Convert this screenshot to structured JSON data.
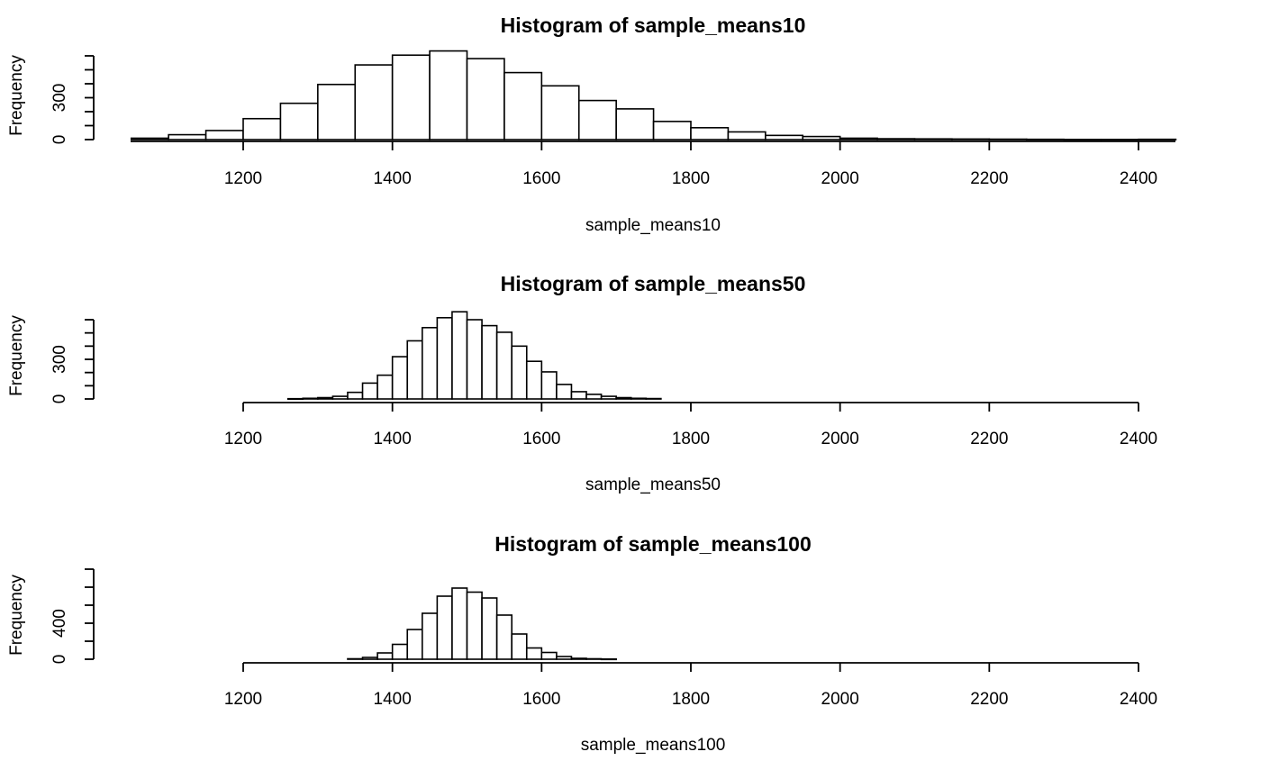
{
  "chart_data": [
    {
      "type": "bar",
      "title": "Histogram of sample_means10",
      "xlabel": "sample_means10",
      "ylabel": "Frequency",
      "xlim": [
        1050,
        2450
      ],
      "ylim": [
        0,
        600
      ],
      "x_ticks": [
        "1200",
        "1400",
        "1600",
        "1800",
        "2000",
        "2200",
        "2400"
      ],
      "y_ticks": [
        "0",
        "300"
      ],
      "bin_edges": [
        1050,
        1100,
        1150,
        1200,
        1250,
        1300,
        1350,
        1400,
        1450,
        1500,
        1550,
        1600,
        1650,
        1700,
        1750,
        1800,
        1850,
        1900,
        1950,
        2000,
        2050,
        2100,
        2150,
        2200,
        2250,
        2300,
        2350,
        2400,
        2450
      ],
      "counts": [
        10,
        35,
        65,
        150,
        260,
        395,
        535,
        605,
        635,
        580,
        480,
        385,
        280,
        220,
        130,
        85,
        55,
        30,
        22,
        10,
        6,
        5,
        4,
        3,
        2,
        1,
        1,
        2
      ]
    },
    {
      "type": "bar",
      "title": "Histogram of sample_means50",
      "xlabel": "sample_means50",
      "ylabel": "Frequency",
      "xlim": [
        1200,
        2400
      ],
      "ylim": [
        0,
        600
      ],
      "x_ticks": [
        "1200",
        "1400",
        "1600",
        "1800",
        "2000",
        "2200",
        "2400"
      ],
      "y_ticks": [
        "0",
        "300"
      ],
      "bin_edges": [
        1260,
        1280,
        1300,
        1320,
        1340,
        1360,
        1380,
        1400,
        1420,
        1440,
        1460,
        1480,
        1500,
        1520,
        1540,
        1560,
        1580,
        1600,
        1620,
        1640,
        1660,
        1680,
        1700,
        1720,
        1740,
        1760
      ],
      "counts": [
        2,
        5,
        10,
        20,
        50,
        120,
        180,
        320,
        440,
        540,
        615,
        660,
        600,
        555,
        505,
        400,
        285,
        205,
        110,
        55,
        35,
        20,
        10,
        5,
        3
      ]
    },
    {
      "type": "bar",
      "title": "Histogram of sample_means100",
      "xlabel": "sample_means100",
      "ylabel": "Frequency",
      "xlim": [
        1200,
        2400
      ],
      "ylim": [
        0,
        1000
      ],
      "x_ticks": [
        "1200",
        "1400",
        "1600",
        "1800",
        "2000",
        "2200",
        "2400"
      ],
      "y_ticks": [
        "0",
        "400"
      ],
      "bin_edges": [
        1340,
        1360,
        1380,
        1400,
        1420,
        1440,
        1460,
        1480,
        1500,
        1520,
        1540,
        1560,
        1580,
        1600,
        1620,
        1640,
        1660,
        1680,
        1700
      ],
      "counts": [
        5,
        20,
        70,
        165,
        330,
        510,
        700,
        790,
        745,
        680,
        490,
        280,
        125,
        75,
        30,
        10,
        5,
        2
      ]
    }
  ]
}
